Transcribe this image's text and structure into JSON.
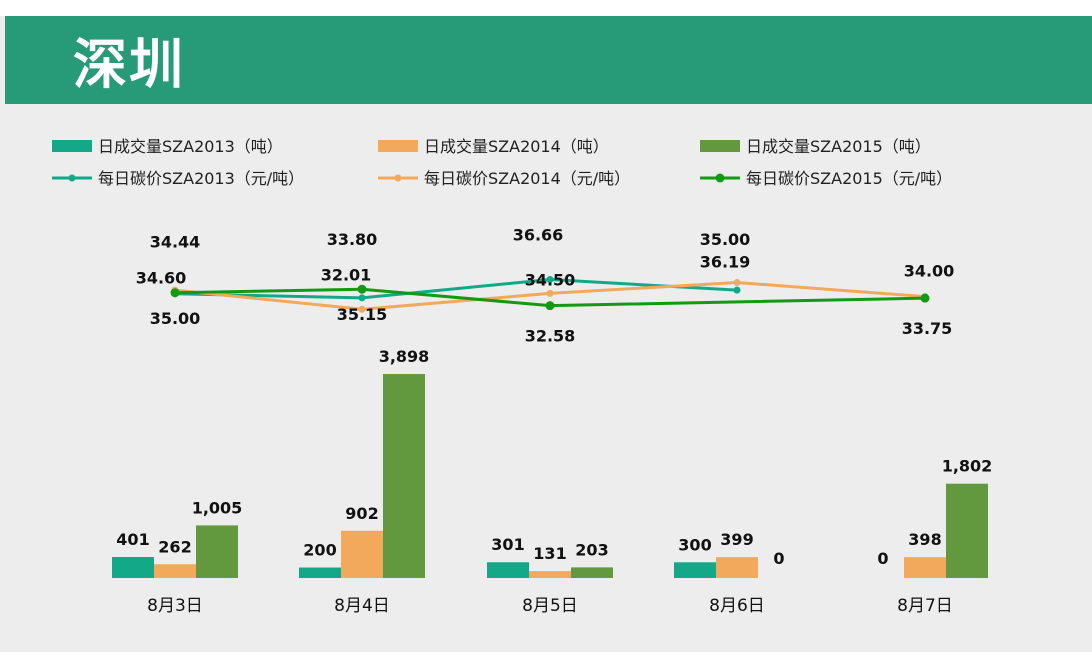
{
  "title": "深圳",
  "colors": {
    "header": "#279b77",
    "s2013": "#13a888",
    "s2014": "#f3a95b",
    "s2015": "#62993e",
    "p2015": "#119a12"
  },
  "chart_data": {
    "type": "bar+line",
    "categories": [
      "8月3日",
      "8月4日",
      "8月5日",
      "8月6日",
      "8月7日"
    ],
    "bar_series": [
      {
        "name": "日成交量SZA2013（吨）",
        "values": [
          401,
          200,
          301,
          300,
          0
        ],
        "labels": [
          "401",
          "200",
          "301",
          "300",
          "0"
        ]
      },
      {
        "name": "日成交量SZA2014（吨）",
        "values": [
          262,
          902,
          131,
          399,
          398
        ],
        "labels": [
          "262",
          "902",
          "131",
          "399",
          "398"
        ]
      },
      {
        "name": "日成交量SZA2015（吨）",
        "values": [
          1005,
          3898,
          203,
          0,
          1802
        ],
        "labels": [
          "1,005",
          "3,898",
          "203",
          "0",
          "1,802"
        ]
      }
    ],
    "line_series": [
      {
        "name": "每日碳价SZA2013（元/吨）",
        "values": [
          34.44,
          33.8,
          36.66,
          35.0,
          null
        ],
        "labels": [
          "34.44",
          "33.80",
          "36.66",
          "35.00",
          ""
        ]
      },
      {
        "name": "每日碳价SZA2014（元/吨）",
        "values": [
          35.0,
          32.01,
          34.5,
          36.19,
          34.0
        ],
        "labels": [
          "35.00",
          "32.01",
          "34.50",
          "36.19",
          "34.00"
        ]
      },
      {
        "name": "每日碳价SZA2015（元/吨）",
        "values": [
          34.6,
          35.15,
          32.58,
          null,
          33.75
        ],
        "labels": [
          "34.60",
          "35.15",
          "32.58",
          "",
          "33.75"
        ]
      }
    ],
    "grid": false,
    "legend_position": "top"
  }
}
